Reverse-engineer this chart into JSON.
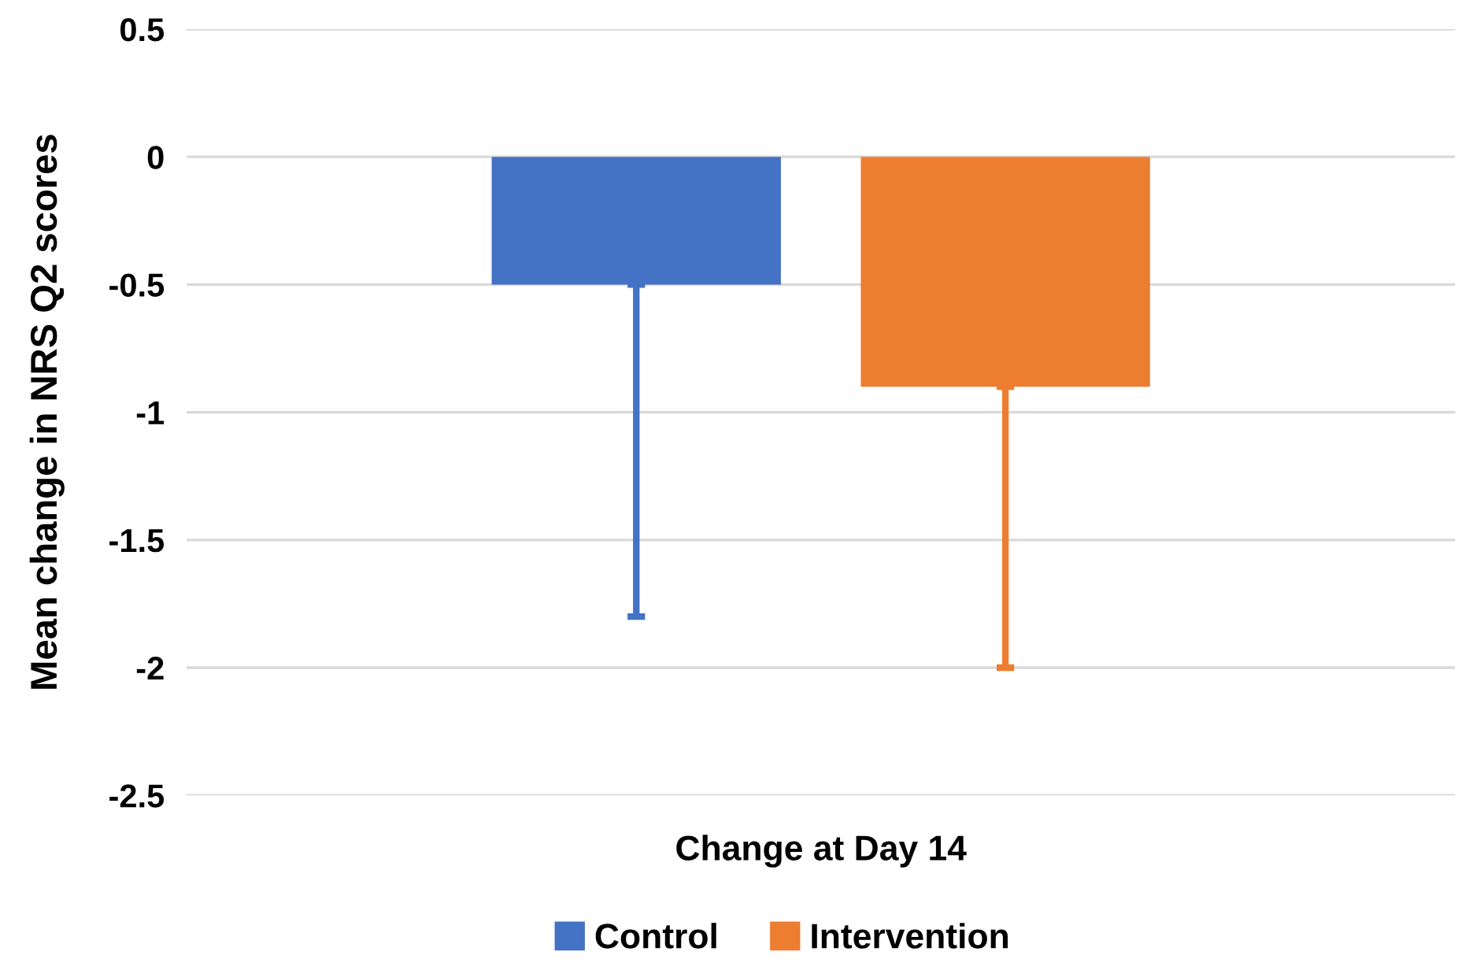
{
  "chart_data": {
    "type": "bar",
    "ylabel": "Mean change in NRS Q2 scores",
    "categories": [
      "Change at Day 14"
    ],
    "series": [
      {
        "name": "Control",
        "color": "#4472c4",
        "values": [
          -0.5
        ],
        "errors": [
          [
            -1.8,
            -0.5
          ]
        ]
      },
      {
        "name": "Intervention",
        "color": "#ed7d31",
        "values": [
          -0.9
        ],
        "errors": [
          [
            -2.0,
            -0.9
          ]
        ]
      }
    ],
    "ylim": [
      -2.5,
      0.5
    ],
    "yticks": [
      0.5,
      0,
      -0.5,
      -1,
      -1.5,
      -2,
      -2.5
    ],
    "grid": "y",
    "legend": "bottom"
  }
}
